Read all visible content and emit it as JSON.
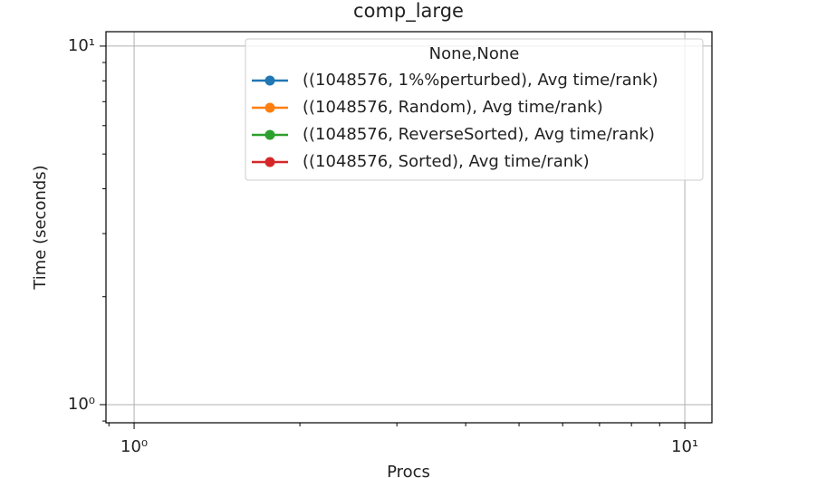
{
  "chart_data": {
    "type": "line",
    "title": "comp_large",
    "xlabel": "Procs",
    "ylabel": "Time (seconds)",
    "x": [],
    "series": [
      {
        "name": "((1048576, 1%%perturbed), Avg time/rank)",
        "color": "#1f77b4",
        "values": []
      },
      {
        "name": "((1048576, Random), Avg time/rank)",
        "color": "#ff7f0e",
        "values": []
      },
      {
        "name": "((1048576, ReverseSorted), Avg time/rank)",
        "color": "#2ca02c",
        "values": []
      },
      {
        "name": "((1048576, Sorted), Avg time/rank)",
        "color": "#d62728",
        "values": []
      }
    ],
    "legend_title": "None,None",
    "legend": "upper right",
    "xscale": "log",
    "yscale": "log",
    "xlim": [
      0.889,
      11.2
    ],
    "ylim": [
      0.89,
      10.97
    ],
    "xticks": [
      {
        "value": 1,
        "label": "10⁰"
      },
      {
        "value": 10,
        "label": "10¹"
      }
    ],
    "yticks": [
      {
        "value": 1,
        "label": "10⁰"
      },
      {
        "value": 10,
        "label": "10¹"
      }
    ],
    "xminorticks": [
      2,
      3,
      4,
      5,
      6,
      7,
      8,
      9
    ],
    "yminorticks": [
      2,
      3,
      4,
      5,
      6,
      7,
      8,
      9
    ],
    "grid": true
  }
}
